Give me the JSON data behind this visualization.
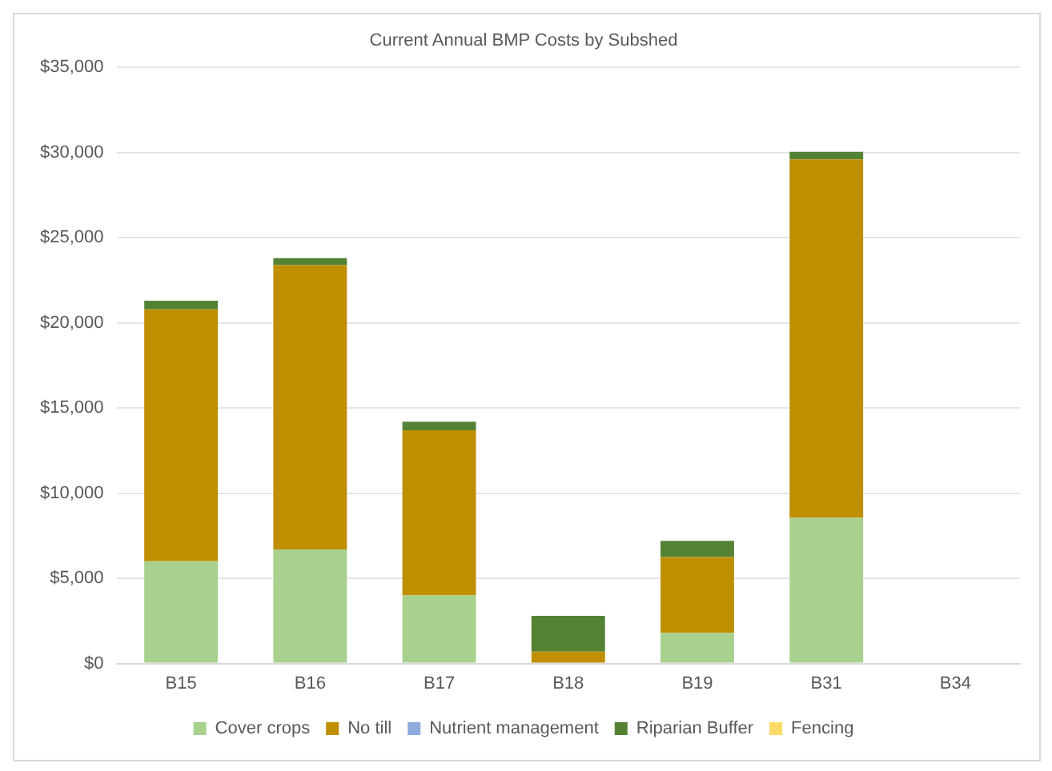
{
  "chart_data": {
    "type": "bar",
    "title": "Current Annual BMP Costs by Subshed",
    "categories": [
      "B15",
      "B16",
      "B17",
      "B18",
      "B19",
      "B31",
      "B34"
    ],
    "stacked": true,
    "series": [
      {
        "name": "Cover crops",
        "color": "#a9d18e",
        "values": [
          6000,
          6700,
          4000,
          0,
          1800,
          8550,
          0
        ]
      },
      {
        "name": "No till",
        "color": "#bf8f00",
        "values": [
          14800,
          16700,
          9700,
          700,
          4450,
          21050,
          0
        ]
      },
      {
        "name": "Nutrient management",
        "color": "#8faadc",
        "values": [
          0,
          0,
          0,
          0,
          0,
          0,
          0
        ]
      },
      {
        "name": "Riparian Buffer",
        "color": "#548235",
        "values": [
          500,
          400,
          500,
          2100,
          950,
          450,
          0
        ]
      },
      {
        "name": "Fencing",
        "color": "#ffd966",
        "values": [
          0,
          0,
          0,
          0,
          0,
          0,
          0
        ]
      }
    ],
    "ylim": [
      0,
      35000
    ],
    "yticks": [
      {
        "value": 0,
        "label": "$0"
      },
      {
        "value": 5000,
        "label": "$5,000"
      },
      {
        "value": 10000,
        "label": "$10,000"
      },
      {
        "value": 15000,
        "label": "$15,000"
      },
      {
        "value": 20000,
        "label": "$20,000"
      },
      {
        "value": 25000,
        "label": "$25,000"
      },
      {
        "value": 30000,
        "label": "$30,000"
      },
      {
        "value": 35000,
        "label": "$35,000"
      }
    ],
    "grid": "y",
    "legend": "bottom"
  }
}
